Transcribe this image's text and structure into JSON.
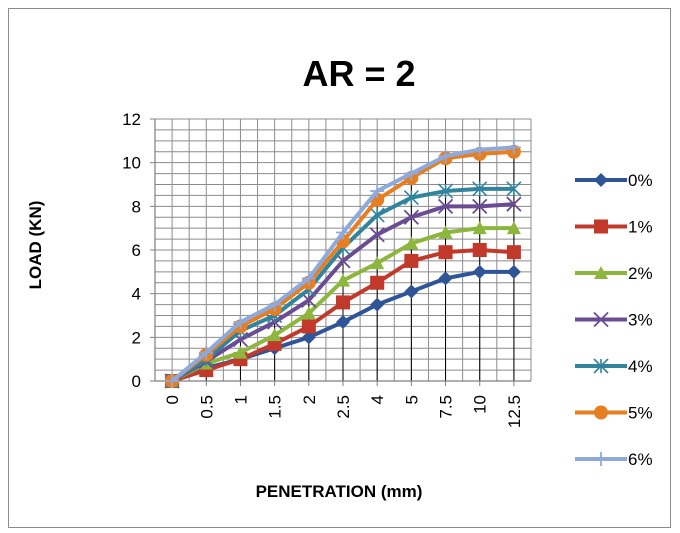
{
  "chart_data": {
    "type": "line",
    "title": "AR = 2",
    "xlabel": "PENETRATION  (mm)",
    "ylabel": "LOAD  (KN)",
    "categories": [
      "0",
      "0.5",
      "1",
      "1.5",
      "2",
      "2.5",
      "4",
      "5",
      "7.5",
      "10",
      "12.5"
    ],
    "ylim": [
      0,
      12
    ],
    "yticks": [
      "0",
      "2",
      "4",
      "6",
      "8",
      "10",
      "12"
    ],
    "grid": true,
    "legend_position": "right",
    "series": [
      {
        "name": "0%",
        "marker": "diamond",
        "color": "#2F5597",
        "values": [
          0,
          0.6,
          1.0,
          1.5,
          2.0,
          2.7,
          3.5,
          4.1,
          4.7,
          5.0,
          5.0
        ]
      },
      {
        "name": "1%",
        "marker": "square",
        "color": "#C0392B",
        "values": [
          0,
          0.5,
          1.0,
          1.7,
          2.5,
          3.6,
          4.5,
          5.5,
          5.9,
          6.0,
          5.9
        ]
      },
      {
        "name": "2%",
        "marker": "triangle",
        "color": "#8DB63C",
        "values": [
          0,
          0.8,
          1.3,
          2.1,
          3.1,
          4.6,
          5.4,
          6.3,
          6.8,
          7.0,
          7.0
        ]
      },
      {
        "name": "3%",
        "marker": "x",
        "color": "#6A4C93",
        "values": [
          0,
          0.9,
          1.9,
          2.7,
          3.7,
          5.5,
          6.7,
          7.5,
          8.0,
          8.0,
          8.1
        ]
      },
      {
        "name": "4%",
        "marker": "star",
        "color": "#31849B",
        "values": [
          0,
          1.0,
          2.3,
          3.0,
          4.2,
          6.1,
          7.6,
          8.4,
          8.7,
          8.8,
          8.8
        ]
      },
      {
        "name": "5%",
        "marker": "circle",
        "color": "#E67E22",
        "values": [
          0,
          1.2,
          2.5,
          3.3,
          4.5,
          6.4,
          8.3,
          9.3,
          10.2,
          10.4,
          10.5
        ]
      },
      {
        "name": "6%",
        "marker": "plus",
        "color": "#8EA9DB",
        "values": [
          0,
          1.3,
          2.7,
          3.5,
          4.7,
          6.8,
          8.7,
          9.5,
          10.3,
          10.6,
          10.7
        ]
      }
    ]
  }
}
